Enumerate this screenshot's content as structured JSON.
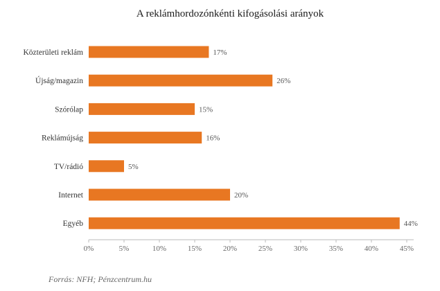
{
  "chart_data": {
    "type": "bar",
    "orientation": "horizontal",
    "title": "A reklámhordozónkénti kifogásolási arányok",
    "categories": [
      "Közterületi reklám",
      "Újság/magazin",
      "Szórólap",
      "Reklámújság",
      "TV/rádió",
      "Internet",
      "Egyéb"
    ],
    "values": [
      17,
      26,
      15,
      16,
      5,
      20,
      44
    ],
    "value_labels": [
      "17%",
      "26%",
      "15%",
      "16%",
      "5%",
      "20%",
      "44%"
    ],
    "xlim": [
      0,
      45
    ],
    "xticks": [
      0,
      5,
      10,
      15,
      20,
      25,
      30,
      35,
      40,
      45
    ],
    "xtick_labels": [
      "0%",
      "5%",
      "10%",
      "15%",
      "20%",
      "25%",
      "30%",
      "35%",
      "40%",
      "45%"
    ],
    "bar_color": "#E87722",
    "grid": false
  },
  "source": "Forrás: NFH; Pénzcentrum.hu"
}
